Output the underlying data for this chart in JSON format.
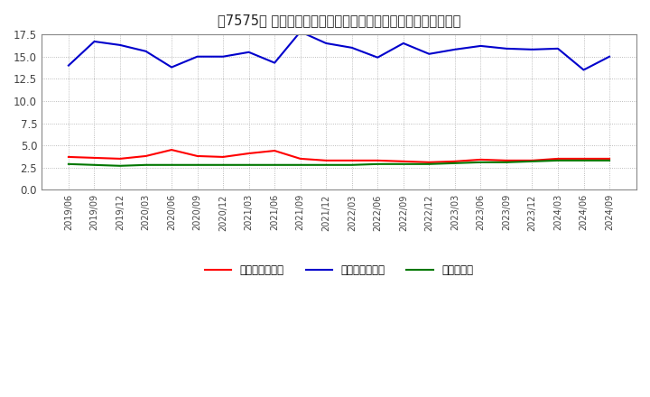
{
  "title": "　7575、売上債権回転率、買入債務回転率、在庫回転率の推移",
  "title_bracket": "、7575、",
  "title_main": "売上債権回転率、買入債務回転率、在庫回転率の推移",
  "dates": [
    "2019/06",
    "2019/09",
    "2019/12",
    "2020/03",
    "2020/06",
    "2020/09",
    "2020/12",
    "2021/03",
    "2021/06",
    "2021/09",
    "2021/12",
    "2022/03",
    "2022/06",
    "2022/09",
    "2022/12",
    "2023/03",
    "2023/06",
    "2023/09",
    "2023/12",
    "2024/03",
    "2024/06",
    "2024/09"
  ],
  "売上債権回転率": [
    3.7,
    3.6,
    3.5,
    3.8,
    4.5,
    3.8,
    3.7,
    4.1,
    4.4,
    3.5,
    3.3,
    3.3,
    3.3,
    3.2,
    3.1,
    3.2,
    3.4,
    3.3,
    3.3,
    3.5,
    3.5,
    3.5
  ],
  "買入債務回転率": [
    14.0,
    16.7,
    16.3,
    15.6,
    13.8,
    15.0,
    15.0,
    15.5,
    14.3,
    17.8,
    16.5,
    16.0,
    14.9,
    16.5,
    15.3,
    15.8,
    16.2,
    15.9,
    15.8,
    15.9,
    13.5,
    15.0
  ],
  "在庫回転率": [
    2.9,
    2.8,
    2.7,
    2.8,
    2.8,
    2.8,
    2.8,
    2.8,
    2.8,
    2.8,
    2.8,
    2.8,
    2.9,
    2.9,
    2.9,
    3.0,
    3.1,
    3.1,
    3.2,
    3.3,
    3.3,
    3.3
  ],
  "line_colors": {
    "売上債権回転率": "#ff0000",
    "買入債務回転率": "#0000cc",
    "在庫回転率": "#007700"
  },
  "legend_labels": [
    "売上債権回転率",
    "買入債務回転率",
    "在庫回転率"
  ],
  "ylim": [
    0,
    17.5
  ],
  "yticks": [
    0.0,
    2.5,
    5.0,
    7.5,
    10.0,
    12.5,
    15.0,
    17.5
  ],
  "background_color": "#ffffff",
  "grid_color": "#aaaaaa"
}
